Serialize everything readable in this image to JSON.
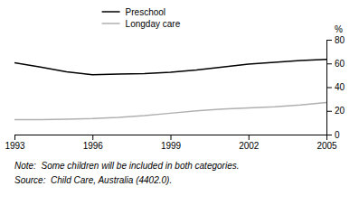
{
  "chart_data": {
    "type": "line",
    "x": [
      1993,
      1994,
      1995,
      1996,
      1997,
      1998,
      1999,
      2000,
      2001,
      2002,
      2003,
      2004,
      2005
    ],
    "series": [
      {
        "name": "Preschool",
        "color": "#000000",
        "values": [
          60.5,
          57.0,
          53.0,
          50.5,
          51.0,
          51.5,
          52.5,
          54.5,
          57.0,
          59.5,
          61.0,
          62.5,
          63.5
        ]
      },
      {
        "name": "Longday care",
        "color": "#b0b0b0",
        "values": [
          12.5,
          12.5,
          13.0,
          13.5,
          14.5,
          16.0,
          18.0,
          20.0,
          21.5,
          22.5,
          23.5,
          25.0,
          27.0
        ]
      }
    ],
    "ylabel": "%",
    "annotations": [
      "Note:  Some children will be included in both categories.",
      "Source:  Child Care, Australia (4402.0)."
    ],
    "xlim": [
      1993,
      2005
    ],
    "ylim": [
      0,
      80
    ],
    "xticks": [
      1993,
      1996,
      1999,
      2002,
      2005
    ],
    "yticks": [
      0,
      20,
      40,
      60,
      80
    ],
    "grid": false
  }
}
